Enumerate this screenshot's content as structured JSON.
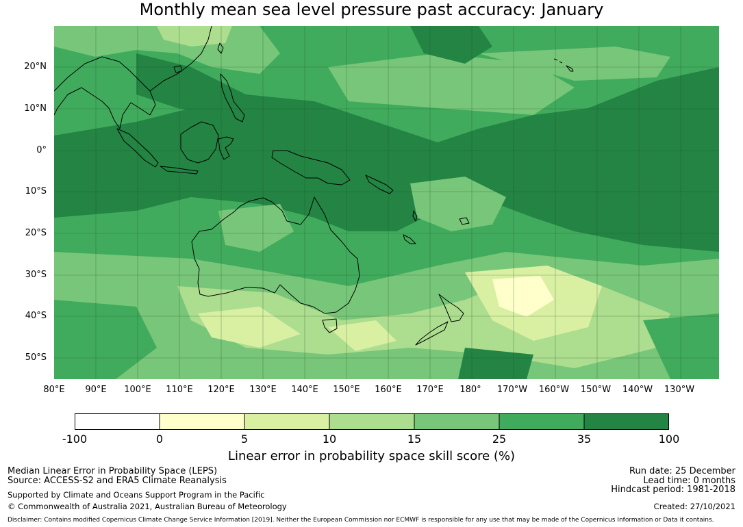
{
  "title": "Monthly mean sea level pressure past accuracy: January",
  "colors": {
    "c0": "#ffffff",
    "c1": "#ffffcc",
    "c2": "#d9f0a3",
    "c3": "#addd8e",
    "c4": "#78c679",
    "c5": "#41ab5d",
    "c6": "#238443",
    "coast": "#000000",
    "grid": "#1f4d2a"
  },
  "map": {
    "lat_labels": [
      "20°N",
      "10°N",
      "0°",
      "10°S",
      "20°S",
      "30°S",
      "40°S",
      "50°S"
    ],
    "lon_labels": [
      "80°E",
      "90°E",
      "100°E",
      "110°E",
      "120°E",
      "130°E",
      "140°E",
      "150°E",
      "160°E",
      "170°E",
      "180°",
      "170°W",
      "160°W",
      "150°W",
      "140°W",
      "130°W"
    ],
    "extent": {
      "lon_min": 80,
      "lon_max": 239,
      "lat_min": -55,
      "lat_max": 30
    }
  },
  "colorbar": {
    "ticks": [
      "-100",
      "0",
      "5",
      "10",
      "15",
      "25",
      "35",
      "100"
    ],
    "label": "Linear error in probability space skill score (%)"
  },
  "footer": {
    "line1": "Median Linear Error in Probability Space (LEPS)",
    "line2": "Source: ACCESS-S2 and ERA5 Climate Reanalysis",
    "line3": "Supported by Climate and Oceans Support Program in the Pacific",
    "line4": "© Commonwealth of Australia 2021, Australian Bureau of Meteorology",
    "run_date": "Run date: 25 December",
    "lead_time": "Lead time: 0 months",
    "hindcast": "Hindcast period: 1981-2018",
    "created": "Created: 27/10/2021",
    "disclaimer": "Disclaimer: Contains modified Copernicus Climate Change Service Information [2019]. Neither the European Commission nor ECMWF is responsible for any use that may be made of the Copernicus Information or Data it contains."
  }
}
